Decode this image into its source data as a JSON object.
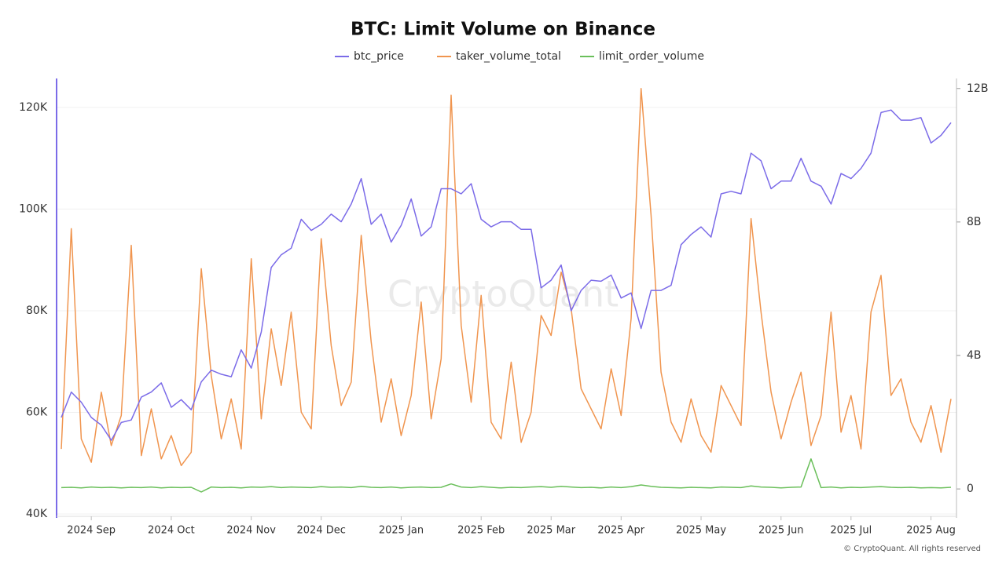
{
  "chart_data": {
    "type": "line",
    "title": "BTC: Limit Volume on Binance",
    "watermark": "CryptoQuant",
    "footer": "© CryptoQuant. All rights reserved",
    "categories": [
      null,
      null,
      null,
      "2024 Sep",
      null,
      null,
      null,
      null,
      null,
      null,
      null,
      "2024 Oct",
      null,
      null,
      null,
      null,
      null,
      null,
      null,
      "2024 Nov",
      null,
      null,
      null,
      null,
      null,
      null,
      "2024 Dec",
      null,
      null,
      null,
      null,
      null,
      null,
      null,
      "2025 Jan",
      null,
      null,
      null,
      null,
      null,
      null,
      null,
      "2025 Feb",
      null,
      null,
      null,
      null,
      null,
      null,
      "2025 Mar",
      null,
      null,
      null,
      null,
      null,
      null,
      "2025 Apr",
      null,
      null,
      null,
      null,
      null,
      null,
      null,
      "2025 May",
      null,
      null,
      null,
      null,
      null,
      null,
      null,
      "2025 Jun",
      null,
      null,
      null,
      null,
      null,
      null,
      "2025 Jul",
      null,
      null,
      null,
      null,
      null,
      null,
      null,
      "2025 Aug",
      null,
      null
    ],
    "ylim": [
      40000,
      125700
    ],
    "yticks": [
      {
        "value": 40000,
        "label": "40K"
      },
      {
        "value": 60000,
        "label": "60K"
      },
      {
        "value": 80000,
        "label": "80K"
      },
      {
        "value": 100000,
        "label": "100K"
      },
      {
        "value": 120000,
        "label": "120K"
      }
    ],
    "y2lim": [
      -750000000,
      12300000000
    ],
    "y2ticks": [
      0,
      {
        "value": 4000000000,
        "label": "4B"
      },
      {
        "value": 8000000000,
        "label": "8B"
      },
      {
        "value": 12000000000,
        "label": "12B"
      }
    ],
    "grid": true,
    "legend": "top",
    "series": [
      {
        "name": "btc_price",
        "color": "#7b6be8",
        "axis": "y",
        "values": [
          59000,
          64000,
          62000,
          59000,
          57500,
          54500,
          58000,
          58500,
          63000,
          64000,
          65800,
          61000,
          62500,
          60500,
          66000,
          68300,
          67500,
          67000,
          72300,
          68700,
          75800,
          88500,
          91000,
          92300,
          98000,
          95800,
          97000,
          99000,
          97500,
          101000,
          106000,
          97000,
          99000,
          93500,
          96800,
          102000,
          94700,
          96500,
          104000,
          104000,
          103000,
          105000,
          98000,
          96500,
          97500,
          97500,
          96000,
          96000,
          84500,
          86000,
          89000,
          80000,
          84000,
          86000,
          85800,
          87000,
          82500,
          83500,
          76500,
          84000,
          84000,
          85000,
          93000,
          95000,
          96500,
          94500,
          103000,
          103500,
          103000,
          111000,
          109500,
          104000,
          105500,
          105500,
          110000,
          105500,
          104500,
          101000,
          107000,
          106000,
          108000,
          111000,
          119000,
          119500,
          117500,
          117500,
          118000,
          113000,
          114500,
          117000
        ]
      },
      {
        "name": "taker_volume_total",
        "color": "#f0954f",
        "axis": "y2",
        "values": [
          1200000000.0,
          7800000000.0,
          1500000000.0,
          800000000.0,
          2900000000.0,
          1300000000.0,
          2200000000.0,
          7300000000.0,
          1000000000.0,
          2400000000.0,
          900000000.0,
          1600000000.0,
          700000000.0,
          1100000000.0,
          6600000000.0,
          3400000000.0,
          1500000000.0,
          2700000000.0,
          1200000000.0,
          6900000000.0,
          2100000000.0,
          4800000000.0,
          3100000000.0,
          5300000000.0,
          2300000000.0,
          1800000000.0,
          7500000000.0,
          4300000000.0,
          2500000000.0,
          3200000000.0,
          7600000000.0,
          4400000000.0,
          2000000000.0,
          3300000000.0,
          1600000000.0,
          2800000000.0,
          5600000000.0,
          2100000000.0,
          3900000000.0,
          11800000000.0,
          4900000000.0,
          2600000000.0,
          5800000000.0,
          2000000000.0,
          1500000000.0,
          3800000000.0,
          1400000000.0,
          2300000000.0,
          5200000000.0,
          4600000000.0,
          6500000000.0,
          5400000000.0,
          3000000000.0,
          2400000000.0,
          1800000000.0,
          3600000000.0,
          2200000000.0,
          5100000000.0,
          12000000000.0,
          8200000000.0,
          3500000000.0,
          2000000000.0,
          1400000000.0,
          2700000000.0,
          1600000000.0,
          1100000000.0,
          3100000000.0,
          2500000000.0,
          1900000000.0,
          8100000000.0,
          5300000000.0,
          2900000000.0,
          1500000000.0,
          2600000000.0,
          3500000000.0,
          1300000000.0,
          2200000000.0,
          5300000000.0,
          1700000000.0,
          2800000000.0,
          1200000000.0,
          5300000000.0,
          6400000000.0,
          2800000000.0,
          3300000000.0,
          2000000000.0,
          1400000000.0,
          2500000000.0,
          1100000000.0,
          2700000000.0
        ]
      },
      {
        "name": "limit_order_volume",
        "color": "#6abf5a",
        "axis": "y2",
        "values": [
          40000000.0,
          50000000.0,
          30000000.0,
          60000000.0,
          40000000.0,
          50000000.0,
          30000000.0,
          50000000.0,
          40000000.0,
          60000000.0,
          30000000.0,
          50000000.0,
          40000000.0,
          50000000.0,
          -90000000.0,
          60000000.0,
          40000000.0,
          50000000.0,
          30000000.0,
          60000000.0,
          50000000.0,
          70000000.0,
          40000000.0,
          60000000.0,
          50000000.0,
          40000000.0,
          70000000.0,
          50000000.0,
          60000000.0,
          40000000.0,
          80000000.0,
          50000000.0,
          40000000.0,
          60000000.0,
          30000000.0,
          50000000.0,
          60000000.0,
          40000000.0,
          50000000.0,
          150000000.0,
          60000000.0,
          40000000.0,
          70000000.0,
          50000000.0,
          30000000.0,
          50000000.0,
          40000000.0,
          60000000.0,
          70000000.0,
          50000000.0,
          80000000.0,
          60000000.0,
          40000000.0,
          50000000.0,
          30000000.0,
          60000000.0,
          40000000.0,
          70000000.0,
          120000000.0,
          80000000.0,
          50000000.0,
          40000000.0,
          30000000.0,
          50000000.0,
          40000000.0,
          30000000.0,
          60000000.0,
          50000000.0,
          40000000.0,
          90000000.0,
          60000000.0,
          50000000.0,
          30000000.0,
          50000000.0,
          60000000.0,
          900000000.0,
          40000000.0,
          60000000.0,
          30000000.0,
          50000000.0,
          40000000.0,
          60000000.0,
          70000000.0,
          50000000.0,
          40000000.0,
          50000000.0,
          30000000.0,
          40000000.0,
          30000000.0,
          50000000.0
        ]
      }
    ]
  }
}
